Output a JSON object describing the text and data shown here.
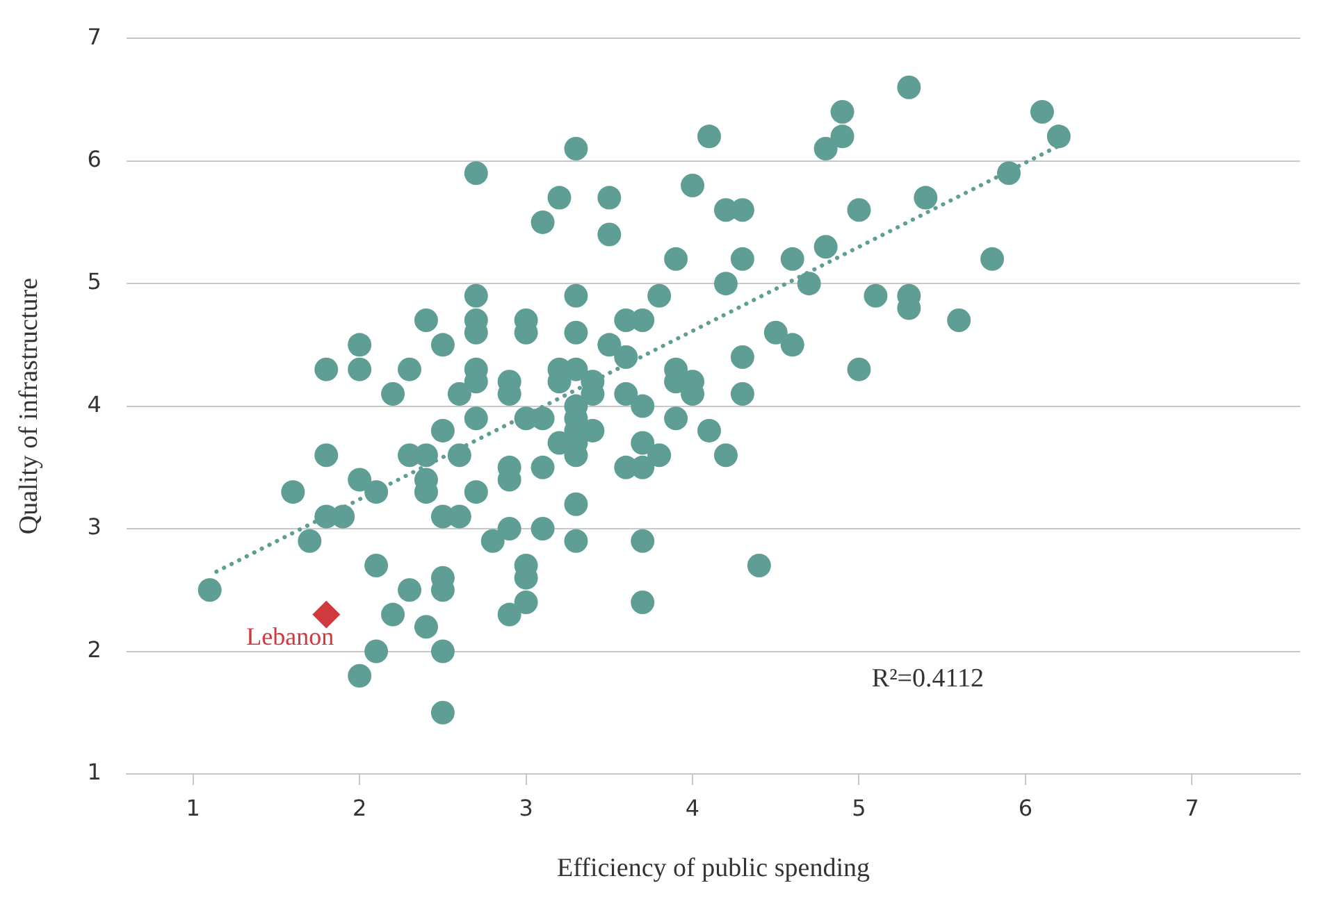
{
  "chart_data": {
    "type": "scatter",
    "xlabel": "Efficiency of public spending",
    "ylabel": "Quality of infrastructure",
    "xlim": [
      0.6,
      7.65
    ],
    "xticks": [
      1,
      2,
      3,
      4,
      5,
      6,
      7
    ],
    "ylim": [
      1,
      7
    ],
    "yticks": [
      1,
      2,
      3,
      4,
      5,
      6,
      7
    ],
    "grid": "y",
    "marker": "circle",
    "annotations": [
      "R²=0.4112"
    ],
    "series": [
      {
        "color": "#5f9e94",
        "x": [
          1.1,
          1.6,
          1.7,
          1.8,
          1.8,
          1.8,
          1.9,
          2.0,
          2.0,
          2.0,
          2.1,
          2.1,
          2.0,
          2.1,
          2.2,
          2.2,
          2.3,
          2.3,
          2.3,
          2.4,
          2.4,
          2.4,
          2.4,
          2.4,
          2.5,
          2.5,
          2.5,
          2.5,
          2.5,
          2.5,
          2.5,
          2.6,
          2.6,
          2.6,
          2.7,
          2.7,
          2.7,
          2.7,
          2.7,
          2.7,
          2.7,
          2.7,
          2.8,
          2.9,
          2.9,
          2.9,
          2.9,
          2.9,
          2.9,
          3.0,
          3.0,
          3.0,
          3.0,
          3.0,
          3.0,
          3.1,
          3.1,
          3.1,
          3.1,
          3.2,
          3.2,
          3.2,
          3.2,
          3.3,
          3.3,
          3.3,
          3.3,
          3.3,
          3.3,
          3.3,
          3.3,
          3.3,
          3.3,
          3.3,
          3.4,
          3.4,
          3.4,
          3.5,
          3.5,
          3.5,
          3.6,
          3.6,
          3.6,
          3.6,
          3.7,
          3.7,
          3.7,
          3.7,
          3.7,
          3.7,
          3.8,
          3.8,
          3.9,
          3.9,
          3.9,
          3.9,
          4.0,
          4.0,
          4.0,
          4.1,
          4.1,
          4.2,
          4.2,
          4.2,
          4.3,
          4.3,
          4.3,
          4.3,
          4.4,
          4.5,
          4.6,
          4.6,
          4.7,
          4.8,
          4.8,
          4.9,
          4.9,
          5.0,
          5.0,
          5.1,
          5.3,
          5.3,
          5.3,
          5.4,
          5.6,
          5.8,
          5.9,
          6.1,
          6.2
        ],
        "values": [
          2.5,
          3.3,
          2.9,
          3.6,
          4.3,
          3.1,
          3.1,
          4.5,
          4.3,
          3.4,
          3.3,
          2.7,
          1.8,
          2.0,
          2.3,
          4.1,
          4.3,
          3.6,
          2.5,
          4.7,
          3.6,
          3.4,
          3.3,
          2.2,
          4.5,
          3.8,
          3.1,
          2.6,
          2.5,
          2.0,
          1.5,
          3.6,
          4.1,
          3.1,
          5.9,
          4.9,
          4.7,
          4.6,
          4.3,
          4.2,
          3.9,
          3.3,
          2.9,
          4.1,
          4.2,
          3.5,
          3.4,
          3.0,
          2.3,
          4.7,
          4.6,
          3.9,
          2.7,
          2.6,
          2.4,
          5.5,
          3.9,
          3.5,
          3.0,
          5.7,
          4.3,
          4.2,
          3.7,
          6.1,
          4.9,
          4.6,
          4.3,
          4.0,
          3.9,
          3.8,
          3.6,
          3.2,
          2.9,
          3.7,
          4.2,
          4.1,
          3.8,
          5.7,
          5.4,
          4.5,
          4.7,
          4.4,
          4.1,
          3.5,
          4.7,
          4.0,
          3.7,
          3.5,
          2.9,
          2.4,
          4.9,
          3.6,
          5.2,
          4.3,
          4.2,
          3.9,
          5.8,
          4.2,
          4.1,
          6.2,
          3.8,
          5.6,
          5.0,
          3.6,
          5.6,
          5.2,
          4.4,
          4.1,
          2.7,
          4.6,
          4.5,
          5.2,
          5.0,
          5.3,
          6.1,
          6.4,
          6.2,
          5.6,
          4.3,
          4.9,
          4.8,
          4.9,
          6.6,
          5.7,
          4.7,
          5.2,
          5.9,
          6.4,
          6.2
        ]
      },
      {
        "name": "Lebanon",
        "color": "#d0393e",
        "marker": "diamond",
        "x": [
          1.8
        ],
        "values": [
          2.3
        ]
      },
      {
        "type": "line",
        "color": "#5f9e94",
        "line_style": "dotted",
        "marker": "none",
        "x": [
          1.14,
          6.21
        ],
        "values": [
          2.65,
          6.13
        ]
      }
    ]
  }
}
